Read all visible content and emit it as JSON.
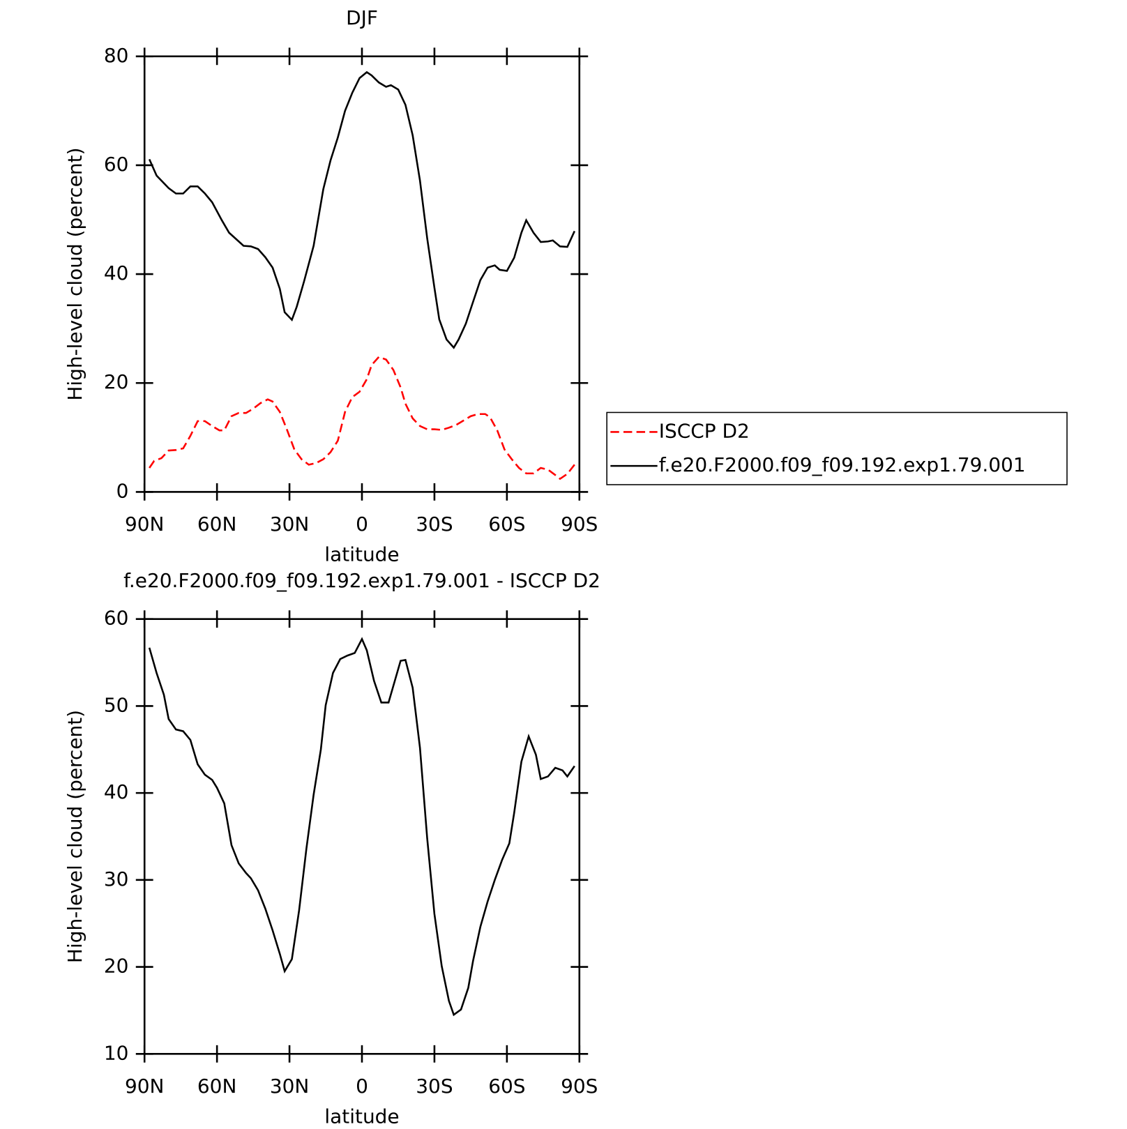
{
  "chart_data": [
    {
      "type": "line",
      "title": "DJF",
      "xlabel": "latitude",
      "ylabel": "High-level cloud (percent)",
      "xlim": [
        90,
        -90
      ],
      "xticks": [
        {
          "value": 90,
          "label": "90N"
        },
        {
          "value": 60,
          "label": "60N"
        },
        {
          "value": 30,
          "label": "30N"
        },
        0,
        {
          "value": -30,
          "label": "30S"
        },
        {
          "value": -60,
          "label": "60S"
        },
        {
          "value": -90,
          "label": "90S"
        }
      ],
      "ylim": [
        0,
        80
      ],
      "yticks": [
        0,
        20,
        40,
        60,
        80
      ],
      "legend": "right",
      "series": [
        {
          "name": "ISCCP D2",
          "color": "#ff0000",
          "linestyle": "dashed",
          "x": [
            88,
            86,
            83,
            80,
            77,
            74,
            71,
            68,
            65,
            62,
            59,
            57,
            54,
            51,
            48,
            45,
            42,
            39,
            37,
            34,
            31,
            28,
            25,
            22,
            19,
            16,
            13,
            10,
            7,
            4,
            1,
            -2,
            -4,
            -7,
            -10,
            -13,
            -16,
            -18,
            -21,
            -24,
            -27,
            -30,
            -33,
            -36,
            -39,
            -42,
            -45,
            -48,
            -51,
            -53,
            -56,
            -59,
            -62,
            -65,
            -68,
            -71,
            -74,
            -77,
            -80,
            -82,
            -85,
            -88
          ],
          "values": [
            4.4,
            5.7,
            6.2,
            7.6,
            7.7,
            8.0,
            10.3,
            13.0,
            13.0,
            12.1,
            11.3,
            11.3,
            13.9,
            14.5,
            14.5,
            15.3,
            16.3,
            17.0,
            16.6,
            14.7,
            11.4,
            7.8,
            6.0,
            5.0,
            5.3,
            6.0,
            7.3,
            9.4,
            14.7,
            17.4,
            18.4,
            20.7,
            23.3,
            24.8,
            24.3,
            22.4,
            19.2,
            16.2,
            13.5,
            12.1,
            11.5,
            11.5,
            11.4,
            11.8,
            12.3,
            13.1,
            13.9,
            14.3,
            14.3,
            13.7,
            11.3,
            7.8,
            6.0,
            4.4,
            3.4,
            3.4,
            4.4,
            4.1,
            3.1,
            2.4,
            3.3,
            5.0
          ]
        },
        {
          "name": "f.e20.F2000.f09_f09.192.exp1.79.001",
          "color": "#000000",
          "linestyle": "solid",
          "x": [
            88,
            85,
            80,
            77,
            74,
            71,
            68,
            65,
            62,
            58,
            55,
            49,
            46,
            43,
            40,
            37,
            34,
            32,
            29,
            27,
            24,
            20,
            16,
            13,
            10,
            7,
            4,
            1,
            -2,
            -4,
            -7,
            -10,
            -12,
            -15,
            -18,
            -21,
            -24,
            -27,
            -30,
            -32,
            -35,
            -38,
            -40,
            -43,
            -46,
            -49,
            -52,
            -55,
            -57,
            -60,
            -63,
            -66,
            -68,
            -71,
            -74,
            -77,
            -79,
            -82,
            -85,
            -88
          ],
          "values": [
            61.1,
            58.1,
            55.8,
            54.8,
            54.8,
            56.1,
            56.1,
            54.8,
            53.2,
            49.9,
            47.6,
            45.2,
            45.1,
            44.6,
            43.1,
            41.2,
            37.3,
            33.0,
            31.6,
            34.0,
            38.6,
            45.2,
            55.6,
            60.9,
            65.1,
            70.0,
            73.3,
            76.0,
            77.1,
            76.5,
            75.2,
            74.4,
            74.7,
            73.9,
            71.1,
            65.5,
            57.2,
            46.6,
            37.5,
            31.7,
            28.0,
            26.5,
            28.0,
            30.9,
            34.9,
            38.9,
            41.2,
            41.6,
            40.8,
            40.6,
            43.0,
            47.6,
            49.9,
            47.6,
            45.9,
            46.0,
            46.2,
            45.1,
            45.0,
            47.9
          ]
        }
      ]
    },
    {
      "type": "line",
      "title": "f.e20.F2000.f09_f09.192.exp1.79.001 - ISCCP D2",
      "xlabel": "latitude",
      "ylabel": "High-level cloud (percent)",
      "xlim": [
        90,
        -90
      ],
      "xticks": [
        {
          "value": 90,
          "label": "90N"
        },
        {
          "value": 60,
          "label": "60N"
        },
        {
          "value": 30,
          "label": "30N"
        },
        0,
        {
          "value": -30,
          "label": "30S"
        },
        {
          "value": -60,
          "label": "60S"
        },
        {
          "value": -90,
          "label": "90S"
        }
      ],
      "ylim": [
        10,
        60
      ],
      "yticks": [
        10,
        20,
        30,
        40,
        50,
        60
      ],
      "series": [
        {
          "color": "#000000",
          "linestyle": "solid",
          "x": [
            88,
            85,
            82,
            80,
            77,
            74,
            71,
            68,
            65,
            62,
            60,
            57,
            54,
            51,
            48,
            46,
            43,
            40,
            37,
            34,
            32,
            29,
            26,
            23,
            20,
            17,
            15,
            12,
            9,
            6,
            3,
            0,
            -2,
            -5,
            -8,
            -11,
            -16,
            -18,
            -21,
            -24,
            -27,
            -30,
            -33,
            -36,
            -38,
            -41,
            -44,
            -46,
            -49,
            -52,
            -55,
            -58,
            -61,
            -63,
            -66,
            -69,
            -72,
            -74,
            -77,
            -80,
            -83,
            -85,
            -88
          ],
          "values": [
            56.7,
            53.8,
            51.3,
            48.5,
            47.3,
            47.1,
            46.1,
            43.3,
            42.1,
            41.5,
            40.6,
            38.8,
            34.0,
            31.9,
            30.8,
            30.2,
            28.8,
            26.7,
            24.2,
            21.5,
            19.5,
            20.9,
            26.5,
            33.6,
            39.8,
            45.0,
            50.1,
            53.8,
            55.4,
            55.8,
            56.1,
            57.7,
            56.4,
            52.9,
            50.4,
            50.4,
            55.2,
            55.3,
            52.1,
            45.2,
            34.8,
            26.1,
            20.1,
            16.1,
            14.5,
            15.1,
            17.6,
            20.7,
            24.6,
            27.5,
            30.0,
            32.3,
            34.2,
            37.7,
            43.6,
            46.5,
            44.4,
            41.6,
            41.9,
            42.9,
            42.6,
            41.9,
            43.1
          ]
        }
      ]
    }
  ]
}
